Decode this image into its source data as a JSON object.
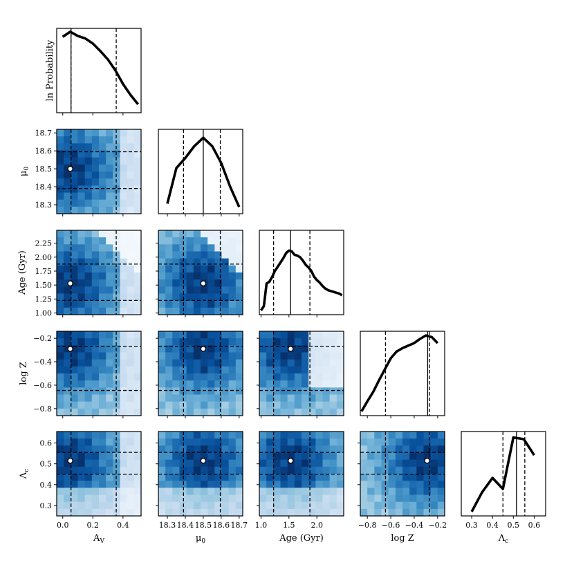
{
  "chart_data": {
    "type": "corner",
    "parameters": [
      {
        "key": "Av",
        "label": "A_V",
        "range": [
          -0.04,
          0.52
        ],
        "ticks": [
          0.0,
          0.2,
          0.4
        ],
        "tick_labels": [
          "0.0",
          "0.2",
          "0.4"
        ],
        "best": 0.05,
        "lower": 0.055,
        "upper": 0.355,
        "median": 0.055
      },
      {
        "key": "mu0",
        "label": "μ0",
        "range": [
          18.25,
          18.72
        ],
        "ticks": [
          18.3,
          18.4,
          18.5,
          18.6,
          18.7
        ],
        "tick_labels": [
          "18.3",
          "18.4",
          "18.5",
          "18.6",
          "18.7"
        ],
        "best": 18.5,
        "lower": 18.39,
        "upper": 18.595,
        "median": 18.5
      },
      {
        "key": "age",
        "label": "Age (Gyr)",
        "range": [
          0.97,
          2.48
        ],
        "ticks": [
          1.0,
          1.25,
          1.5,
          1.75,
          2.0,
          2.25
        ],
        "tick_labels": [
          "1.00",
          "1.25",
          "1.50",
          "1.75",
          "2.00",
          "2.25"
        ],
        "x_ticks": [
          1.0,
          1.5,
          2.0
        ],
        "x_tick_labels": [
          "1.0",
          "1.5",
          "2.0"
        ],
        "best": 1.53,
        "lower": 1.225,
        "upper": 1.875,
        "median": 1.53
      },
      {
        "key": "logZ",
        "label": "log Z",
        "range": [
          -0.86,
          -0.14
        ],
        "ticks": [
          -0.8,
          -0.6,
          -0.4,
          -0.2
        ],
        "tick_labels": [
          "−0.8",
          "−0.6",
          "−0.4",
          "−0.2"
        ],
        "best": -0.29,
        "lower": -0.645,
        "upper": -0.27,
        "median": -0.285
      },
      {
        "key": "lambda_c",
        "label": "Λc",
        "range": [
          0.25,
          0.655
        ],
        "ticks": [
          0.3,
          0.4,
          0.5,
          0.6
        ],
        "tick_labels": [
          "0.3",
          "0.4",
          "0.5",
          "0.6"
        ],
        "best": 0.515,
        "lower": 0.45,
        "upper": 0.555,
        "median": 0.515
      }
    ],
    "diagonal_ylabel": "ln Probability",
    "marginals": [
      {
        "x": [
          0.0,
          0.05,
          0.1,
          0.15,
          0.2,
          0.25,
          0.3,
          0.35,
          0.4,
          0.45,
          0.5
        ],
        "y": [
          0.9,
          0.96,
          0.91,
          0.88,
          0.82,
          0.73,
          0.63,
          0.5,
          0.34,
          0.21,
          0.1
        ]
      },
      {
        "x": [
          18.3,
          18.35,
          18.4,
          18.45,
          18.5,
          18.55,
          18.6,
          18.65,
          18.7
        ],
        "y": [
          0.12,
          0.54,
          0.66,
          0.8,
          0.9,
          0.8,
          0.6,
          0.32,
          0.08
        ]
      },
      {
        "x": [
          1.0,
          1.05,
          1.1,
          1.15,
          1.2,
          1.25,
          1.3,
          1.35,
          1.4,
          1.45,
          1.5,
          1.55,
          1.6,
          1.65,
          1.7,
          1.75,
          1.8,
          1.85,
          1.9,
          1.95,
          2.0,
          2.05,
          2.1,
          2.15,
          2.2,
          2.25,
          2.3,
          2.35,
          2.4,
          2.45
        ],
        "y": [
          0.05,
          0.1,
          0.37,
          0.39,
          0.45,
          0.52,
          0.57,
          0.62,
          0.67,
          0.73,
          0.76,
          0.75,
          0.71,
          0.7,
          0.68,
          0.64,
          0.59,
          0.56,
          0.52,
          0.45,
          0.41,
          0.38,
          0.34,
          0.31,
          0.29,
          0.28,
          0.27,
          0.26,
          0.25,
          0.23
        ]
      },
      {
        "x": [
          -0.85,
          -0.8,
          -0.75,
          -0.7,
          -0.65,
          -0.6,
          -0.55,
          -0.5,
          -0.45,
          -0.4,
          -0.35,
          -0.3,
          -0.25,
          -0.2
        ],
        "y": [
          0.05,
          0.17,
          0.28,
          0.42,
          0.55,
          0.68,
          0.76,
          0.8,
          0.83,
          0.86,
          0.91,
          0.95,
          0.93,
          0.86
        ]
      },
      {
        "x": [
          0.3,
          0.35,
          0.4,
          0.45,
          0.5,
          0.55,
          0.6
        ],
        "y": [
          0.05,
          0.28,
          0.45,
          0.32,
          0.93,
          0.91,
          0.72
        ]
      }
    ],
    "colormap": "Blues",
    "heatmap_grid": 12
  }
}
